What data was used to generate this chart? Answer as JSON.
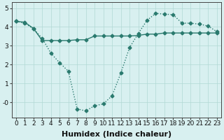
{
  "line1_x": [
    0,
    1,
    2,
    3,
    4,
    5,
    6,
    7,
    8,
    9,
    10,
    11,
    12,
    13,
    14,
    15,
    16,
    17,
    18,
    19,
    20,
    21,
    22,
    23
  ],
  "line1_y": [
    4.3,
    4.2,
    3.9,
    3.4,
    2.6,
    2.1,
    1.65,
    -0.35,
    -0.45,
    -0.18,
    -0.08,
    0.35,
    1.55,
    2.9,
    3.65,
    4.35,
    4.72,
    4.68,
    4.65,
    4.2,
    4.2,
    4.15,
    4.05,
    3.75
  ],
  "line2_x": [
    0,
    1,
    2,
    3,
    4,
    5,
    6,
    7,
    8,
    9,
    10,
    11,
    12,
    13,
    14,
    15,
    16,
    17,
    18,
    19,
    20,
    21,
    22,
    23
  ],
  "line2_y": [
    4.3,
    4.25,
    3.92,
    3.28,
    3.28,
    3.28,
    3.28,
    3.32,
    3.32,
    3.52,
    3.52,
    3.52,
    3.52,
    3.52,
    3.55,
    3.62,
    3.62,
    3.68,
    3.68,
    3.68,
    3.68,
    3.68,
    3.68,
    3.68
  ],
  "line_color": "#2a7a6e",
  "bg_color": "#d8f0f0",
  "grid_color": "#b0d8d4",
  "xlabel": "Humidex (Indice chaleur)",
  "ylim": [
    -0.8,
    5.3
  ],
  "xlim": [
    -0.5,
    23.5
  ],
  "yticks": [
    0,
    1,
    2,
    3,
    4,
    5
  ],
  "ytick_labels": [
    "-0",
    "1",
    "2",
    "3",
    "4",
    "5"
  ],
  "xticks": [
    0,
    1,
    2,
    3,
    4,
    5,
    6,
    7,
    8,
    9,
    10,
    11,
    12,
    13,
    14,
    15,
    16,
    17,
    18,
    19,
    20,
    21,
    22,
    23
  ],
  "marker": "D",
  "marker_size": 2.5,
  "linewidth": 1.0,
  "xlabel_fontsize": 8,
  "tick_fontsize": 6.5
}
